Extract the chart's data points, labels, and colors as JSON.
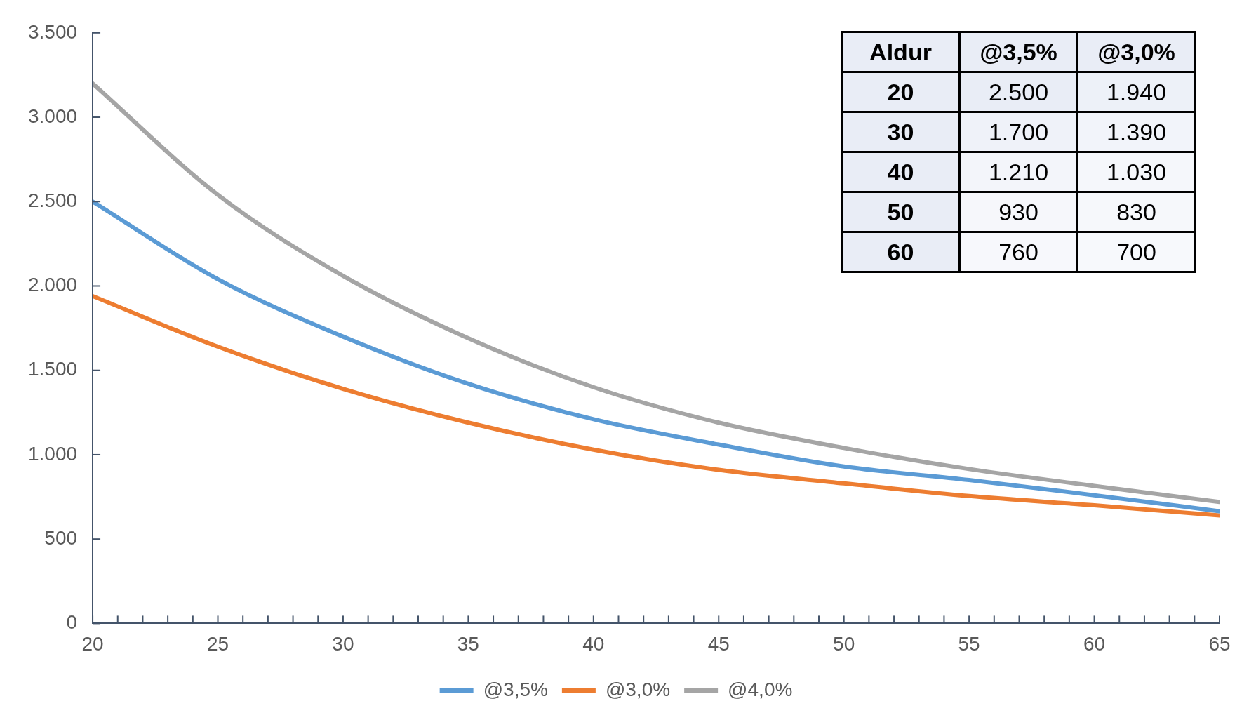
{
  "chart_data": [
    {
      "type": "line",
      "x": [
        20,
        25,
        30,
        35,
        40,
        45,
        50,
        55,
        60,
        65
      ],
      "series": [
        {
          "name": "@3,5%",
          "color": "#5b9bd5",
          "values": [
            2500,
            2040,
            1700,
            1420,
            1210,
            1060,
            930,
            850,
            760,
            665
          ]
        },
        {
          "name": "@3,0%",
          "color": "#ed7d31",
          "values": [
            1940,
            1640,
            1390,
            1190,
            1030,
            910,
            830,
            755,
            700,
            640
          ]
        },
        {
          "name": "@4,0%",
          "color": "#a5a5a5",
          "values": [
            3200,
            2540,
            2060,
            1690,
            1400,
            1190,
            1040,
            915,
            815,
            720
          ]
        }
      ],
      "xlim": [
        20,
        65
      ],
      "xticks": [
        20,
        {
          "value": 21,
          "label": null
        },
        {
          "value": 22,
          "label": null
        },
        {
          "value": 23,
          "label": null
        },
        {
          "value": 24,
          "label": null
        },
        25,
        {
          "value": 26,
          "label": null
        },
        {
          "value": 27,
          "label": null
        },
        {
          "value": 28,
          "label": null
        },
        {
          "value": 29,
          "label": null
        },
        30,
        {
          "value": 31,
          "label": null
        },
        {
          "value": 32,
          "label": null
        },
        {
          "value": 33,
          "label": null
        },
        {
          "value": 34,
          "label": null
        },
        35,
        {
          "value": 36,
          "label": null
        },
        {
          "value": 37,
          "label": null
        },
        {
          "value": 38,
          "label": null
        },
        {
          "value": 39,
          "label": null
        },
        40,
        {
          "value": 41,
          "label": null
        },
        {
          "value": 42,
          "label": null
        },
        {
          "value": 43,
          "label": null
        },
        {
          "value": 44,
          "label": null
        },
        45,
        {
          "value": 46,
          "label": null
        },
        {
          "value": 47,
          "label": null
        },
        {
          "value": 48,
          "label": null
        },
        {
          "value": 49,
          "label": null
        },
        50,
        {
          "value": 51,
          "label": null
        },
        {
          "value": 52,
          "label": null
        },
        {
          "value": 53,
          "label": null
        },
        {
          "value": 54,
          "label": null
        },
        55,
        {
          "value": 56,
          "label": null
        },
        {
          "value": 57,
          "label": null
        },
        {
          "value": 58,
          "label": null
        },
        {
          "value": 59,
          "label": null
        },
        60,
        {
          "value": 61,
          "label": null
        },
        {
          "value": 62,
          "label": null
        },
        {
          "value": 63,
          "label": null
        },
        {
          "value": 64,
          "label": null
        },
        65
      ],
      "ylim": [
        0,
        3500
      ],
      "yticks": [
        0,
        500,
        {
          "value": 1000,
          "label": "1.000"
        },
        {
          "value": 1500,
          "label": "1.500"
        },
        {
          "value": 2000,
          "label": "2.000"
        },
        {
          "value": 2500,
          "label": "2.500"
        },
        {
          "value": 3000,
          "label": "3.000"
        },
        {
          "value": 3500,
          "label": "3.500"
        }
      ],
      "grid": false,
      "legend": "bottom",
      "marker": "none",
      "line_style": "solid"
    },
    {
      "type": "heatmap",
      "ylabel": "Aldur",
      "categories": [
        "@3,5%",
        "@3,0%"
      ],
      "y_categories": [
        "20",
        "30",
        "40",
        "50",
        "60"
      ],
      "cells": [
        [
          2500,
          1940
        ],
        [
          1700,
          1390
        ],
        [
          1210,
          1030
        ],
        [
          930,
          830
        ],
        [
          760,
          700
        ]
      ],
      "cell_labels": [
        [
          "2.500",
          "1.940"
        ],
        [
          "1.700",
          "1.390"
        ],
        [
          "1.210",
          "1.030"
        ],
        [
          "930",
          "830"
        ],
        [
          "760",
          "700"
        ]
      ]
    }
  ]
}
